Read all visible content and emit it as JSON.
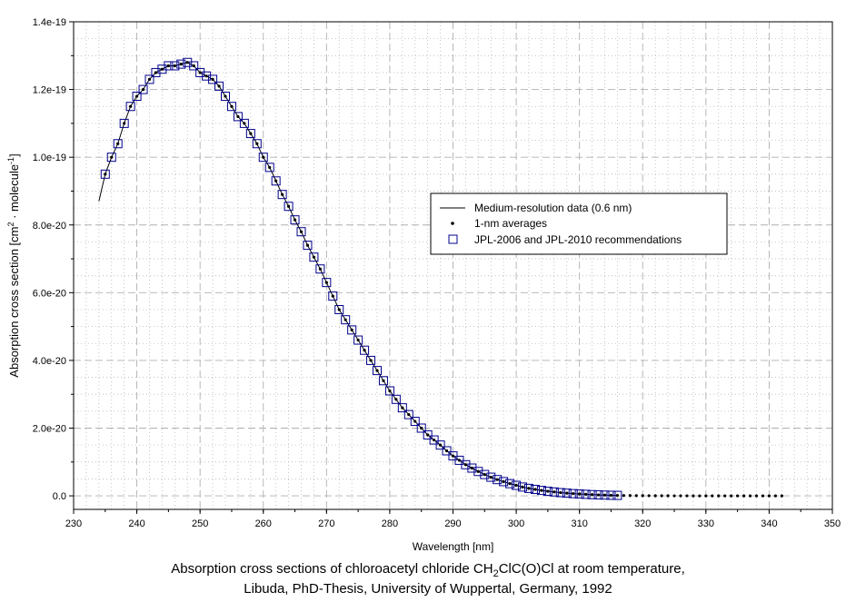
{
  "chart_data": {
    "type": "line",
    "xlabel": "Wavelength [nm]",
    "ylabel_main": "Absorption cross section [cm",
    "ylabel_sup1": "2",
    "ylabel_mid": " · molecule",
    "ylabel_sup2": "-1",
    "ylabel_end": "]",
    "xlim": [
      230,
      350
    ],
    "ylim": [
      -4e-21,
      1.4e-19
    ],
    "x_ticks": [
      230,
      240,
      250,
      260,
      270,
      280,
      290,
      300,
      310,
      320,
      330,
      340,
      350
    ],
    "y_ticks": [
      0,
      2e-20,
      4e-20,
      6e-20,
      8e-20,
      1e-19,
      1.2e-19,
      1.4e-19
    ],
    "y_tick_labels": [
      "0.0",
      "2.0e-20",
      "4.0e-20",
      "6.0e-20",
      "8.0e-20",
      "1.0e-19",
      "1.2e-19",
      "1.4e-19"
    ],
    "grid": true,
    "legend_position": "center-right",
    "series": [
      {
        "name": "Medium-resolution data (0.6 nm)",
        "style": "line",
        "color": "#000000",
        "x": [
          234,
          235,
          236,
          237,
          238,
          239,
          240,
          241,
          242,
          243,
          244,
          245,
          246,
          247,
          248,
          249,
          250,
          251,
          252,
          253,
          254,
          255,
          256,
          257,
          258,
          259,
          260,
          261,
          262,
          263,
          264,
          265,
          266,
          267,
          268,
          269,
          270,
          271,
          272,
          273,
          274,
          275,
          276,
          277,
          278,
          279,
          280,
          281,
          282,
          283,
          284,
          285,
          286,
          287,
          288,
          289,
          290,
          291,
          292,
          293,
          294,
          295,
          296,
          297,
          298,
          299,
          300,
          301,
          302,
          303,
          304,
          305,
          306,
          307,
          308,
          309,
          310,
          311,
          312,
          313,
          314,
          315,
          316
        ],
        "y": [
          8.7e-20,
          9.5e-20,
          1e-19,
          1.04e-19,
          1.1e-19,
          1.15e-19,
          1.18e-19,
          1.2e-19,
          1.23e-19,
          1.25e-19,
          1.26e-19,
          1.27e-19,
          1.27e-19,
          1.275e-19,
          1.28e-19,
          1.27e-19,
          1.25e-19,
          1.24e-19,
          1.23e-19,
          1.21e-19,
          1.18e-19,
          1.15e-19,
          1.12e-19,
          1.1e-19,
          1.07e-19,
          1.04e-19,
          1e-19,
          9.7e-20,
          9.3e-20,
          8.9e-20,
          8.55e-20,
          8.15e-20,
          7.8e-20,
          7.4e-20,
          7.05e-20,
          6.7e-20,
          6.3e-20,
          5.9e-20,
          5.5e-20,
          5.2e-20,
          4.9e-20,
          4.6e-20,
          4.3e-20,
          4e-20,
          3.7e-20,
          3.4e-20,
          3.1e-20,
          2.85e-20,
          2.6e-20,
          2.4e-20,
          2.2e-20,
          2e-20,
          1.8e-20,
          1.65e-20,
          1.5e-20,
          1.33e-20,
          1.18e-20,
          1.05e-20,
          9.2e-21,
          8.2e-21,
          7.2e-21,
          6.3e-21,
          5.5e-21,
          4.8e-21,
          4.2e-21,
          3.6e-21,
          3.1e-21,
          2.6e-21,
          2.2e-21,
          1.9e-21,
          1.6e-21,
          1.35e-21,
          1.15e-21,
          9.5e-22,
          8e-22,
          6.5e-22,
          5.5e-22,
          4.5e-22,
          3.5e-22,
          2.8e-22,
          2.2e-22,
          1.7e-22,
          1.3e-22
        ]
      },
      {
        "name": "1-nm averages",
        "style": "dots",
        "color": "#000000",
        "x": [
          235,
          236,
          237,
          238,
          239,
          240,
          241,
          242,
          243,
          244,
          245,
          246,
          247,
          248,
          249,
          250,
          251,
          252,
          253,
          254,
          255,
          256,
          257,
          258,
          259,
          260,
          261,
          262,
          263,
          264,
          265,
          266,
          267,
          268,
          269,
          270,
          271,
          272,
          273,
          274,
          275,
          276,
          277,
          278,
          279,
          280,
          281,
          282,
          283,
          284,
          285,
          286,
          287,
          288,
          289,
          290,
          291,
          292,
          293,
          294,
          295,
          296,
          297,
          298,
          299,
          300,
          301,
          302,
          303,
          304,
          305,
          306,
          307,
          308,
          309,
          310,
          311,
          312,
          313,
          314,
          315,
          316,
          317,
          318,
          319,
          320,
          321,
          322,
          323,
          324,
          325,
          326,
          327,
          328,
          329,
          330,
          331,
          332,
          333,
          334,
          335,
          336,
          337,
          338,
          339,
          340,
          341,
          342
        ],
        "y": [
          9.5e-20,
          1e-19,
          1.04e-19,
          1.1e-19,
          1.15e-19,
          1.18e-19,
          1.2e-19,
          1.23e-19,
          1.25e-19,
          1.26e-19,
          1.27e-19,
          1.27e-19,
          1.275e-19,
          1.28e-19,
          1.27e-19,
          1.25e-19,
          1.24e-19,
          1.23e-19,
          1.21e-19,
          1.18e-19,
          1.15e-19,
          1.12e-19,
          1.1e-19,
          1.07e-19,
          1.04e-19,
          1e-19,
          9.7e-20,
          9.3e-20,
          8.9e-20,
          8.55e-20,
          8.15e-20,
          7.8e-20,
          7.4e-20,
          7.05e-20,
          6.7e-20,
          6.3e-20,
          5.9e-20,
          5.5e-20,
          5.2e-20,
          4.9e-20,
          4.6e-20,
          4.3e-20,
          4e-20,
          3.7e-20,
          3.4e-20,
          3.1e-20,
          2.85e-20,
          2.6e-20,
          2.4e-20,
          2.2e-20,
          2e-20,
          1.8e-20,
          1.65e-20,
          1.5e-20,
          1.33e-20,
          1.18e-20,
          1.05e-20,
          9.2e-21,
          8.2e-21,
          7.2e-21,
          6.3e-21,
          5.5e-21,
          4.8e-21,
          4.2e-21,
          3.6e-21,
          3.1e-21,
          2.6e-21,
          2.2e-21,
          1.9e-21,
          1.6e-21,
          1.35e-21,
          1.15e-21,
          9.5e-22,
          8e-22,
          6.5e-22,
          5.5e-22,
          4.5e-22,
          3.5e-22,
          2.8e-22,
          2.2e-22,
          1.7e-22,
          1.3e-22,
          1e-22,
          8e-23,
          6e-23,
          5e-23,
          4e-23,
          3e-23,
          2e-23,
          1.5e-23,
          1e-23,
          8e-24,
          6e-24,
          5e-24,
          4e-24,
          3e-24,
          2e-24,
          1.5e-24,
          1e-24,
          8e-25,
          6e-25,
          5e-25,
          4e-25,
          3e-25,
          2e-25,
          1.5e-25,
          1e-25,
          8e-26
        ]
      },
      {
        "name": "JPL-2006 and JPL-2010 recommendations",
        "style": "squares",
        "color": "#00008b",
        "x": [
          235,
          236,
          237,
          238,
          239,
          240,
          241,
          242,
          243,
          244,
          245,
          246,
          247,
          248,
          249,
          250,
          251,
          252,
          253,
          254,
          255,
          256,
          257,
          258,
          259,
          260,
          261,
          262,
          263,
          264,
          265,
          266,
          267,
          268,
          269,
          270,
          271,
          272,
          273,
          274,
          275,
          276,
          277,
          278,
          279,
          280,
          281,
          282,
          283,
          284,
          285,
          286,
          287,
          288,
          289,
          290,
          291,
          292,
          293,
          294,
          295,
          296,
          297,
          298,
          299,
          300,
          301,
          302,
          303,
          304,
          305,
          306,
          307,
          308,
          309,
          310,
          311,
          312,
          313,
          314,
          315,
          316
        ],
        "y": [
          9.5e-20,
          1e-19,
          1.04e-19,
          1.1e-19,
          1.15e-19,
          1.18e-19,
          1.2e-19,
          1.23e-19,
          1.25e-19,
          1.26e-19,
          1.27e-19,
          1.27e-19,
          1.275e-19,
          1.28e-19,
          1.27e-19,
          1.25e-19,
          1.24e-19,
          1.23e-19,
          1.21e-19,
          1.18e-19,
          1.15e-19,
          1.12e-19,
          1.1e-19,
          1.07e-19,
          1.04e-19,
          1e-19,
          9.7e-20,
          9.3e-20,
          8.9e-20,
          8.55e-20,
          8.15e-20,
          7.8e-20,
          7.4e-20,
          7.05e-20,
          6.7e-20,
          6.3e-20,
          5.9e-20,
          5.5e-20,
          5.2e-20,
          4.9e-20,
          4.6e-20,
          4.3e-20,
          4e-20,
          3.7e-20,
          3.4e-20,
          3.1e-20,
          2.85e-20,
          2.6e-20,
          2.4e-20,
          2.2e-20,
          2e-20,
          1.8e-20,
          1.65e-20,
          1.5e-20,
          1.33e-20,
          1.18e-20,
          1.05e-20,
          9.2e-21,
          8.2e-21,
          7.2e-21,
          6.3e-21,
          5.5e-21,
          4.8e-21,
          4.2e-21,
          3.6e-21,
          3.1e-21,
          2.6e-21,
          2.2e-21,
          1.9e-21,
          1.6e-21,
          1.35e-21,
          1.15e-21,
          9.5e-22,
          8e-22,
          6.5e-22,
          5.5e-22,
          4.5e-22,
          3.5e-22,
          2.8e-22,
          2.2e-22,
          1.7e-22,
          1.3e-22
        ]
      }
    ]
  },
  "caption": {
    "line1_prefix": "Absorption cross sections of chloroacetyl chloride CH",
    "line1_sub": "2",
    "line1_suffix": "ClC(O)Cl at room temperature,",
    "line2": "Libuda, PhD-Thesis, University of Wuppertal, Germany, 1992"
  }
}
